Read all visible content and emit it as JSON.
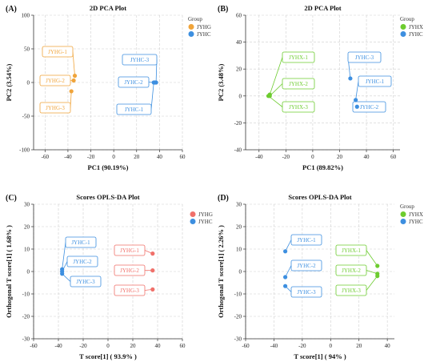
{
  "chart_data": [
    {
      "type": "scatter",
      "panel_label": "(A)",
      "title": "2D PCA Plot",
      "xlabel": "PC1 (90.19%)",
      "ylabel": "PC2 (3.54%)",
      "xlim": [
        -70,
        60
      ],
      "ylim": [
        -100,
        100
      ],
      "xticks": [
        -60,
        -40,
        -20,
        0,
        20,
        40,
        60
      ],
      "yticks": [
        -100,
        -50,
        0,
        50,
        100
      ],
      "grid": true,
      "legend_title": "Group",
      "legend_placement": "top-right",
      "series": [
        {
          "name": "JYHG",
          "color": "#f0a43a",
          "points": [
            {
              "x": -34,
              "y": 10,
              "label": "JYHG-1"
            },
            {
              "x": -35,
              "y": 3,
              "label": "JYHG-2"
            },
            {
              "x": -37,
              "y": -13,
              "label": "JYHG-3"
            }
          ]
        },
        {
          "name": "JYHC",
          "color": "#3d8fe0",
          "points": [
            {
              "x": 37,
              "y": 0,
              "label": "JYHC-3"
            },
            {
              "x": 36,
              "y": 0,
              "label": "JYHC-2"
            },
            {
              "x": 35,
              "y": 0,
              "label": "JYHC-1"
            }
          ]
        }
      ]
    },
    {
      "type": "scatter",
      "panel_label": "(B)",
      "title": "2D PCA Plot",
      "xlabel": "PC1 (89.82%)",
      "ylabel": "PC2 (3.48%)",
      "xlim": [
        -50,
        65
      ],
      "ylim": [
        -40,
        60
      ],
      "xticks": [
        -40,
        -20,
        0,
        20,
        40,
        60
      ],
      "yticks": [
        -40,
        -20,
        0,
        20,
        40,
        60
      ],
      "grid": true,
      "legend_title": "Group",
      "legend_placement": "top-right",
      "series": [
        {
          "name": "JYHX",
          "color": "#6dcc2f",
          "points": [
            {
              "x": -32,
              "y": 1,
              "label": "JYHX-1"
            },
            {
              "x": -32,
              "y": 0,
              "label": "JYHX-2"
            },
            {
              "x": -33,
              "y": 0,
              "label": "JYHX-3"
            }
          ]
        },
        {
          "name": "JYHC",
          "color": "#3d8fe0",
          "points": [
            {
              "x": 28,
              "y": 13,
              "label": "JYHC-3"
            },
            {
              "x": 32,
              "y": -3,
              "label": "JYHC-1"
            },
            {
              "x": 33,
              "y": -8,
              "label": "JYHC-2"
            }
          ]
        }
      ]
    },
    {
      "type": "scatter",
      "panel_label": "(C)",
      "title": "Scores OPLS-DA Plot",
      "xlabel": "T score[1] ( 93.9% )",
      "ylabel": "Orthogonal T score[1] ( 1.68% )",
      "xlim": [
        -60,
        60
      ],
      "ylim": [
        -30,
        30
      ],
      "xticks": [
        -60,
        -40,
        -20,
        0,
        20,
        40,
        60
      ],
      "yticks": [
        -30,
        -20,
        -10,
        0,
        10,
        20,
        30
      ],
      "grid": true,
      "legend_title": "",
      "legend_placement": "top-right",
      "series": [
        {
          "name": "JYHG",
          "color": "#f0706a",
          "points": [
            {
              "x": 36,
              "y": 8,
              "label": "JYHG-1"
            },
            {
              "x": 36,
              "y": 0.5,
              "label": "JYHG-2"
            },
            {
              "x": 36,
              "y": -8,
              "label": "JYHG-3"
            }
          ]
        },
        {
          "name": "JYHC",
          "color": "#3d8fe0",
          "points": [
            {
              "x": -37,
              "y": 1,
              "label": "JYHC-1"
            },
            {
              "x": -37,
              "y": 0,
              "label": "JYHC-2"
            },
            {
              "x": -37,
              "y": -1,
              "label": "JYHC-3"
            }
          ]
        }
      ]
    },
    {
      "type": "scatter",
      "panel_label": "(D)",
      "title": "Scores OPLS-DA Plot",
      "xlabel": "T score[1] ( 94% )",
      "ylabel": "Orthogonal T score[1] ( 2.26% )",
      "xlim": [
        -60,
        45
      ],
      "ylim": [
        -30,
        30
      ],
      "xticks": [
        -60,
        -40,
        -20,
        0,
        20,
        40
      ],
      "yticks": [
        -30,
        -20,
        -10,
        0,
        10,
        20,
        30
      ],
      "grid": true,
      "legend_title": "Group",
      "legend_placement": "top-right",
      "series": [
        {
          "name": "JYHX",
          "color": "#6dcc2f",
          "points": [
            {
              "x": 33,
              "y": 2.5,
              "label": "JYHX-1"
            },
            {
              "x": 33,
              "y": -1,
              "label": "JYHX-2"
            },
            {
              "x": 33,
              "y": -2,
              "label": "JYHX-3"
            }
          ]
        },
        {
          "name": "JYHC",
          "color": "#3d8fe0",
          "points": [
            {
              "x": -32,
              "y": 9,
              "label": "JYHC-1"
            },
            {
              "x": -32,
              "y": -2.5,
              "label": "JYHC-2"
            },
            {
              "x": -32,
              "y": -6.5,
              "label": "JYHC-3"
            }
          ]
        }
      ]
    }
  ]
}
